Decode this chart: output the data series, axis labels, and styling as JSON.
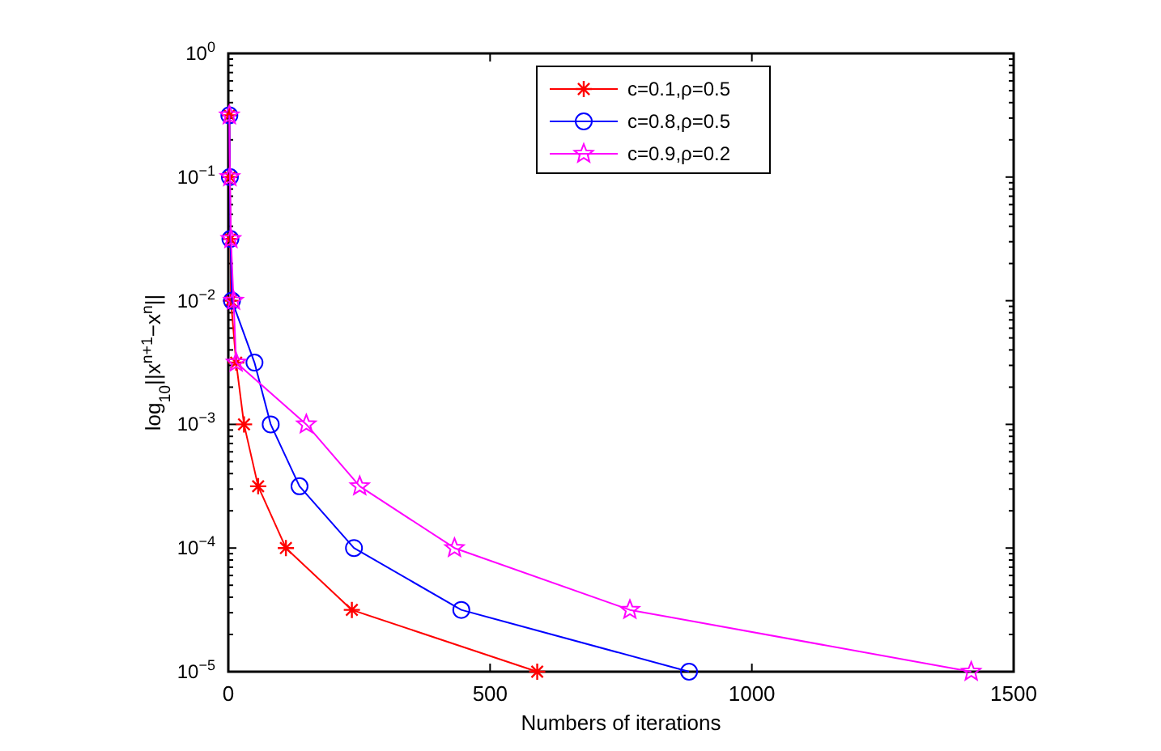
{
  "chart_data": {
    "type": "line",
    "xlabel": "Numbers of iterations",
    "ylabel": "log$_{10}$||x$^{n+1}$−x$^{n}$||",
    "log": "y",
    "xlim": [
      0,
      1500
    ],
    "xticks": [
      0,
      500,
      1000,
      1500
    ],
    "ylim": [
      1e-05,
      1
    ],
    "yticks": [
      {
        "value": 1e-05,
        "label": "10$^{−5}$"
      },
      {
        "value": 0.0001,
        "label": "10$^{−4}$"
      },
      {
        "value": 0.001,
        "label": "10$^{−3}$"
      },
      {
        "value": 0.01,
        "label": "10$^{−2}$"
      },
      {
        "value": 0.1,
        "label": "10$^{−1}$"
      },
      {
        "value": 1,
        "label": "10$^{0}$"
      }
    ],
    "legend": "top",
    "grid": false,
    "series": [
      {
        "name": "c=0.1,ρ=0.5",
        "color": "#ff0000",
        "marker": "cross",
        "x": [
          2,
          3,
          4,
          5,
          15,
          30,
          57,
          110,
          236,
          590
        ],
        "values": [
          0.316,
          0.1,
          0.0316,
          0.01,
          0.00316,
          0.001,
          0.000316,
          0.0001,
          3.16e-05,
          1e-05
        ]
      },
      {
        "name": "c=0.8,ρ=0.5",
        "color": "#0000ff",
        "marker": "circle",
        "x": [
          2,
          3,
          4,
          7,
          50,
          81,
          136,
          240,
          445,
          880
        ],
        "values": [
          0.316,
          0.1,
          0.0316,
          0.01,
          0.00316,
          0.001,
          0.000316,
          0.0001,
          3.16e-05,
          1e-05
        ]
      },
      {
        "name": "c=0.9,ρ=0.2",
        "color": "#ff00ff",
        "marker": "star",
        "x": [
          2,
          3,
          5,
          10,
          15,
          149,
          251,
          432,
          767,
          1419
        ],
        "values": [
          0.316,
          0.1,
          0.0316,
          0.01,
          0.00316,
          0.001,
          0.000316,
          0.0001,
          3.16e-05,
          1e-05
        ]
      }
    ]
  }
}
